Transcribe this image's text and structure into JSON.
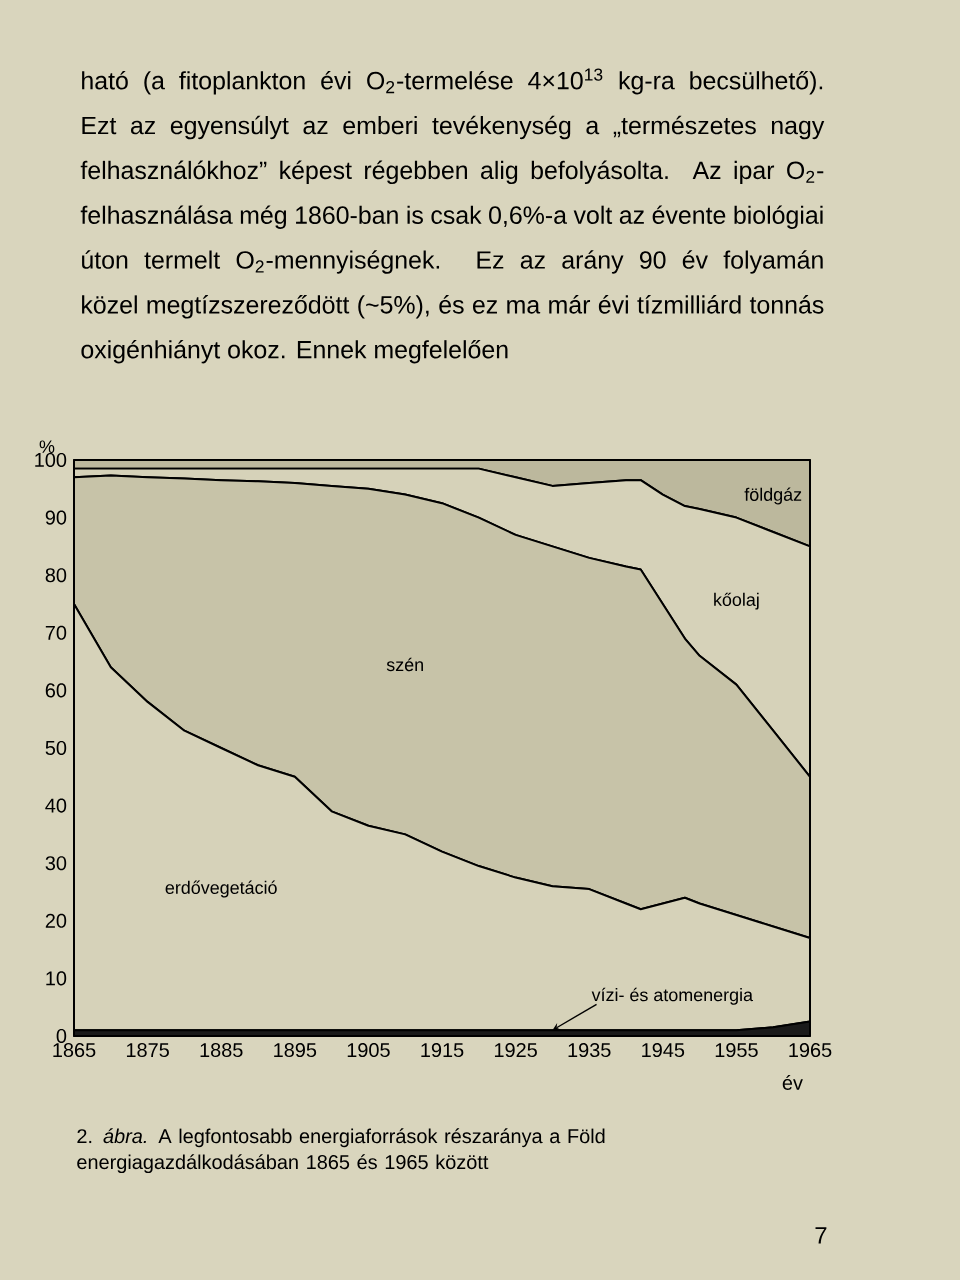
{
  "chart_data": {
    "type": "area",
    "stacked": true,
    "ylabel": "%",
    "xlabel": "év",
    "x": [
      1865,
      1870,
      1875,
      1880,
      1885,
      1890,
      1895,
      1900,
      1905,
      1910,
      1915,
      1920,
      1925,
      1930,
      1935,
      1940,
      1942,
      1945,
      1948,
      1950,
      1955,
      1960,
      1965
    ],
    "series": [
      {
        "name": "vízi- és atomenergia",
        "color": "#1a1a1a",
        "values": [
          1,
          1,
          1,
          1,
          1,
          1,
          1,
          1,
          1,
          1,
          1,
          1,
          1,
          1,
          1,
          1,
          1,
          1,
          1,
          1,
          1,
          1.5,
          2.5
        ]
      },
      {
        "name": "erdővegetáció",
        "color": "#d6d2b9",
        "values": [
          74,
          63,
          57,
          52,
          49,
          46,
          44,
          38,
          35.5,
          34,
          31,
          28.5,
          26.5,
          25,
          24.5,
          22,
          21,
          22,
          23,
          22,
          20,
          17.5,
          14.5
        ]
      },
      {
        "name": "szén",
        "color": "#c7c3a8",
        "values": [
          22,
          33.3,
          39,
          43.8,
          46.5,
          49.3,
          51,
          56.5,
          58.5,
          59,
          60.5,
          60.5,
          59.5,
          59,
          57.5,
          58.5,
          59,
          52,
          45,
          43,
          40,
          34,
          28
        ]
      },
      {
        "name": "kőolaj",
        "color": "#d6d2b9",
        "values": [
          1.5,
          1.2,
          1.5,
          1.7,
          2,
          2.2,
          2.5,
          3,
          3.5,
          4.5,
          6,
          8.5,
          10,
          10.5,
          13,
          15,
          15.5,
          19,
          23,
          25.5,
          29,
          34.5,
          40
        ]
      },
      {
        "name": "földgáz",
        "color": "#bcb89d",
        "values": [
          1.5,
          1.5,
          1.5,
          1.5,
          1.5,
          1.5,
          1.5,
          1.5,
          1.5,
          1.5,
          1.5,
          1.5,
          3,
          4.5,
          4,
          3.5,
          3.5,
          6,
          8,
          8.5,
          10,
          12.5,
          15
        ]
      }
    ],
    "xlim": [
      1865,
      1965
    ],
    "xticks": [
      1865,
      1875,
      1885,
      1895,
      1905,
      1915,
      1925,
      1935,
      1945,
      1955,
      1965
    ],
    "ylim": [
      0,
      100
    ],
    "yticks": [
      0,
      10,
      20,
      30,
      40,
      50,
      60,
      70,
      80,
      90,
      100
    ],
    "annotations": [
      "ható (a fitoplankton évi O$_{2}$-termelése 4×10$^{13}$ kg-ra becsülhető). Ezt az egyensúlyt az emberi tevékenység a „természetes nagy felhasználókhoz” képest régebben alig befolyásolta. Az ipar O$_{2}$-felhasználása még 1860-ban is csak 0,6%-a volt az évente biológiai úton termelt O$_{2}$-mennyiségnek. Ez az arány 90 év folyamán közel megtízszereződött (~5%), és ez ma már évi tízmilliárd tonnás oxigénhiányt okoz. Ennek megfelelően",
      "2. *ábra.* A legfontosabb energiaforrások részaránya a Föld energiagazdálkodásában 1865 és 1965 között",
      "7"
    ]
  }
}
